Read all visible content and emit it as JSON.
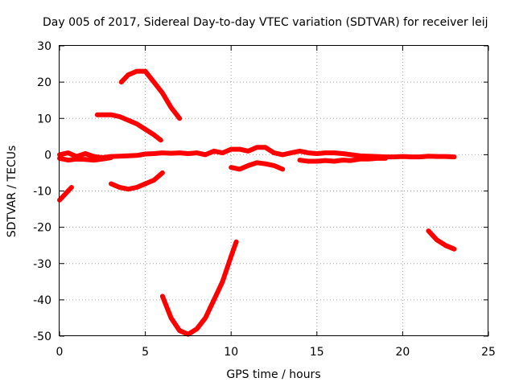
{
  "chart_data": {
    "type": "line",
    "title": "Day 005 of 2017, Sidereal Day-to-day VTEC variation (SDTVAR) for receiver leij",
    "xlabel": "GPS time / hours",
    "ylabel": "SDTVAR / TECUs",
    "xlim": [
      0,
      25
    ],
    "ylim": [
      -50,
      30
    ],
    "xticks": [
      "0",
      "5",
      "10",
      "15",
      "20",
      "25"
    ],
    "yticks": [
      "30",
      "20",
      "10",
      "0",
      "-10",
      "-20",
      "-30",
      "-40",
      "-50"
    ],
    "xtick_values": [
      0,
      5,
      10,
      15,
      20,
      25
    ],
    "ytick_values": [
      30,
      20,
      10,
      0,
      -10,
      -20,
      -30,
      -40,
      -50
    ],
    "grid": true,
    "color": "#ff0000",
    "series": [
      {
        "x": [
          0,
          0.5,
          1,
          1.5,
          2,
          2.5,
          3,
          3.5,
          4,
          4.5,
          5,
          5.5,
          6,
          6.5,
          7,
          7.5,
          8,
          8.5,
          9,
          9.5,
          10,
          10.5,
          11,
          11.5,
          12,
          12.5,
          13,
          13.5,
          14,
          14.5,
          15,
          15.5,
          16,
          16.5,
          17,
          17.5,
          18,
          18.5,
          19,
          19.5,
          20,
          20.5,
          21,
          21.5,
          22,
          22.5,
          23
        ],
        "y": [
          0,
          0.5,
          -0.5,
          0.3,
          -0.5,
          -0.8,
          -0.5,
          -0.4,
          -0.3,
          -0.2,
          0.2,
          0.3,
          0.5,
          0.4,
          0.5,
          0.3,
          0.5,
          0,
          1,
          0.5,
          1.5,
          1.5,
          1,
          2,
          2,
          0.5,
          0,
          0.5,
          1,
          0.5,
          0.3,
          0.5,
          0.5,
          0.3,
          0,
          -0.3,
          -0.4,
          -0.5,
          -0.6,
          -0.6,
          -0.5,
          -0.6,
          -0.6,
          -0.4,
          -0.5,
          -0.5,
          -0.6
        ]
      },
      {
        "x": [
          0,
          0.5,
          1,
          1.5,
          2,
          2.5,
          3
        ],
        "y": [
          -1,
          -1.5,
          -1.2,
          -1.3,
          -1.5,
          -1.2,
          -0.8
        ]
      },
      {
        "x": [
          14,
          14.5,
          15,
          15.5,
          16,
          16.5,
          17,
          17.5,
          18,
          18.5,
          19
        ],
        "y": [
          -1.5,
          -1.8,
          -1.8,
          -1.6,
          -1.8,
          -1.5,
          -1.6,
          -1.2,
          -1.2,
          -1,
          -1
        ]
      },
      {
        "x": [
          3.6,
          4,
          4.5,
          5,
          5.5,
          6,
          6.5,
          7
        ],
        "y": [
          20,
          22,
          23,
          23,
          20,
          17,
          13,
          10
        ]
      },
      {
        "x": [
          2.2,
          2.5,
          3,
          3.5,
          4,
          4.5,
          5,
          5.5,
          5.9
        ],
        "y": [
          11,
          11,
          11,
          10.5,
          9.5,
          8.5,
          7,
          5.5,
          4
        ]
      },
      {
        "x": [
          0,
          0.3,
          0.7
        ],
        "y": [
          -12.5,
          -11,
          -9
        ]
      },
      {
        "x": [
          3,
          3.5,
          4,
          4.5,
          5,
          5.5,
          6
        ],
        "y": [
          -8,
          -9,
          -9.5,
          -9,
          -8,
          -7,
          -5
        ]
      },
      {
        "x": [
          10,
          10.5,
          11,
          11.5,
          12,
          12.5,
          13
        ],
        "y": [
          -3.5,
          -4,
          -3,
          -2.2,
          -2.5,
          -3,
          -4
        ]
      },
      {
        "x": [
          6,
          6.5,
          7,
          7.5,
          8,
          8.5,
          9,
          9.5,
          10,
          10.3
        ],
        "y": [
          -39,
          -45,
          -48.5,
          -49.5,
          -48,
          -45,
          -40,
          -35,
          -28,
          -24
        ]
      },
      {
        "x": [
          21.5,
          22,
          22.5,
          23
        ],
        "y": [
          -21,
          -23.5,
          -25,
          -26
        ]
      }
    ]
  }
}
